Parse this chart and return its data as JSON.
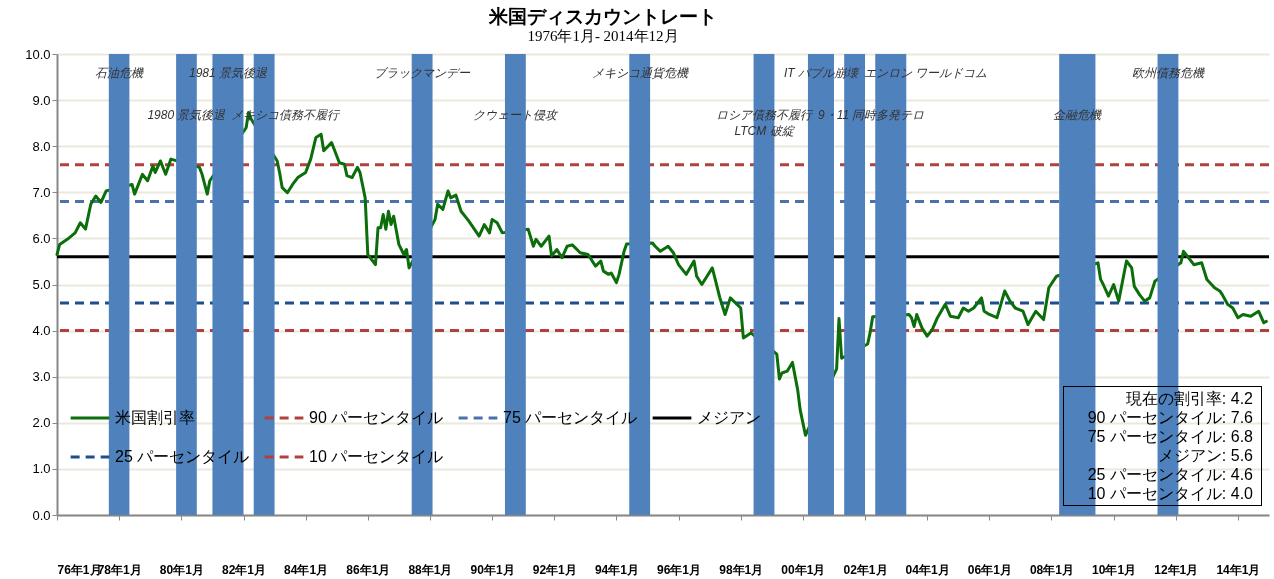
{
  "chart_data": {
    "type": "line",
    "title": "米国ディスカウントレート",
    "subtitle": "1976年1月- 2014年12月",
    "xlim": [
      "1976-01",
      "2015-01"
    ],
    "xticks": [
      {
        "value": "1976-01",
        "label": "76年1月"
      },
      {
        "value": "1978-01",
        "label": "78年1月"
      },
      {
        "value": "1980-01",
        "label": "80年1月"
      },
      {
        "value": "1982-01",
        "label": "82年1月"
      },
      {
        "value": "1984-01",
        "label": "84年1月"
      },
      {
        "value": "1986-01",
        "label": "86年1月"
      },
      {
        "value": "1988-01",
        "label": "88年1月"
      },
      {
        "value": "1990-01",
        "label": "90年1月"
      },
      {
        "value": "1992-01",
        "label": "92年1月"
      },
      {
        "value": "1994-01",
        "label": "94年1月"
      },
      {
        "value": "1996-01",
        "label": "96年1月"
      },
      {
        "value": "1998-01",
        "label": "98年1月"
      },
      {
        "value": "2000-01",
        "label": "00年1月"
      },
      {
        "value": "2002-01",
        "label": "02年1月"
      },
      {
        "value": "2004-01",
        "label": "04年1月"
      },
      {
        "value": "2006-01",
        "label": "06年1月"
      },
      {
        "value": "2008-01",
        "label": "08年1月"
      },
      {
        "value": "2010-01",
        "label": "10年1月"
      },
      {
        "value": "2012-01",
        "label": "12年1月"
      },
      {
        "value": "2014-01",
        "label": "14年1月"
      }
    ],
    "ylim": [
      0,
      10
    ],
    "yticks": [
      {
        "value": 0,
        "label": "0.0"
      },
      {
        "value": 1,
        "label": "1.0"
      },
      {
        "value": 2,
        "label": "2.0"
      },
      {
        "value": 3,
        "label": "3.0"
      },
      {
        "value": 4,
        "label": "4.0"
      },
      {
        "value": 5,
        "label": "5.0"
      },
      {
        "value": 6,
        "label": "6.0"
      },
      {
        "value": 7,
        "label": "7.0"
      },
      {
        "value": 8,
        "label": "8.0"
      },
      {
        "value": 9,
        "label": "9.0"
      },
      {
        "value": 10,
        "label": "10.0"
      }
    ],
    "grid": "y",
    "legend": "bottom left",
    "line_style": "solid",
    "marker": "none",
    "series": [
      {
        "name": "米国割引率",
        "color": "#0b6e0b",
        "x": [
          "1976-01",
          "1976-02",
          "1976-05",
          "1976-08",
          "1976-10",
          "1976-12",
          "1977-02",
          "1977-04",
          "1977-06",
          "1977-08",
          "1978-06",
          "1978-07",
          "1978-10",
          "1978-12",
          "1979-02",
          "1979-03",
          "1979-05",
          "1979-07",
          "1979-09",
          "1980-08",
          "1980-09",
          "1980-11",
          "1980-12",
          "1982-02",
          "1982-03",
          "1982-04",
          "1983-02",
          "1983-03",
          "1983-04",
          "1983-06",
          "1983-08",
          "1983-10",
          "1984-01",
          "1984-03",
          "1984-05",
          "1984-07",
          "1984-08",
          "1984-11",
          "1985-02",
          "1985-04",
          "1985-05",
          "1985-07",
          "1985-09",
          "1985-10",
          "1985-12",
          "1986-01",
          "1986-04",
          "1986-05",
          "1986-06",
          "1986-07",
          "1986-08",
          "1986-09",
          "1986-10",
          "1986-11",
          "1987-01",
          "1987-03",
          "1987-04",
          "1987-05",
          "1988-03",
          "1988-04",
          "1988-06",
          "1988-08",
          "1988-09",
          "1988-11",
          "1989-01",
          "1989-04",
          "1989-08",
          "1989-10",
          "1989-12",
          "1990-01",
          "1990-03",
          "1990-05",
          "1991-03",
          "1991-05",
          "1991-06",
          "1991-08",
          "1991-11",
          "1991-12",
          "1992-02",
          "1992-04",
          "1992-06",
          "1992-08",
          "1992-11",
          "1993-02",
          "1993-05",
          "1993-07",
          "1993-08",
          "1993-10",
          "1993-11",
          "1994-01",
          "1994-02",
          "1994-04",
          "1994-05",
          "1995-03",
          "1995-04",
          "1995-06",
          "1995-09",
          "1995-11",
          "1996-01",
          "1996-04",
          "1996-07",
          "1996-08",
          "1996-10",
          "1996-12",
          "1997-02",
          "1997-05",
          "1997-07",
          "1997-09",
          "1998-01",
          "1998-02",
          "1998-05",
          "1999-03",
          "1999-04",
          "1999-05",
          "1999-07",
          "1999-09",
          "1999-11",
          "1999-12",
          "2000-02",
          "2001-02",
          "2001-03",
          "2001-04",
          "2002-02",
          "2002-03",
          "2002-04",
          "2003-06",
          "2003-07",
          "2003-08",
          "2003-09",
          "2003-11",
          "2004-01",
          "2004-03",
          "2004-05",
          "2004-08",
          "2004-10",
          "2005-01",
          "2005-03",
          "2005-05",
          "2005-07",
          "2005-10",
          "2005-11",
          "2006-01",
          "2006-04",
          "2006-07",
          "2006-09",
          "2006-11",
          "2007-02",
          "2007-04",
          "2007-07",
          "2007-10",
          "2007-12",
          "2008-03",
          "2009-07",
          "2009-08",
          "2009-09",
          "2009-11",
          "2010-01",
          "2010-03",
          "2010-06",
          "2010-08",
          "2010-09",
          "2010-11",
          "2011-01",
          "2011-03",
          "2011-05",
          "2012-03",
          "2012-04",
          "2012-08",
          "2012-11",
          "2013-01",
          "2013-04",
          "2013-06",
          "2013-07",
          "2013-09",
          "2013-11",
          "2014-01",
          "2014-03",
          "2014-06",
          "2014-09",
          "2014-11",
          "2014-12"
        ],
        "values": [
          5.65,
          5.87,
          5.98,
          6.12,
          6.34,
          6.2,
          6.74,
          6.92,
          6.78,
          7.03,
          7.17,
          6.96,
          7.39,
          7.25,
          7.57,
          7.43,
          7.68,
          7.39,
          7.72,
          7.54,
          7.39,
          6.96,
          7.25,
          8.4,
          8.73,
          8.59,
          7.68,
          7.43,
          7.1,
          6.99,
          7.17,
          7.32,
          7.43,
          7.72,
          8.19,
          8.26,
          7.9,
          8.08,
          7.64,
          7.61,
          7.36,
          7.32,
          7.54,
          7.43,
          6.88,
          5.65,
          5.43,
          6.23,
          6.23,
          6.52,
          6.2,
          6.59,
          6.3,
          6.48,
          5.87,
          5.65,
          5.76,
          5.36,
          6.41,
          6.74,
          6.63,
          7.03,
          6.88,
          6.94,
          6.59,
          6.38,
          6.05,
          6.3,
          6.12,
          6.41,
          6.34,
          6.12,
          6.2,
          5.83,
          5.98,
          5.83,
          6.05,
          5.62,
          5.76,
          5.58,
          5.83,
          5.86,
          5.69,
          5.65,
          5.4,
          5.51,
          5.29,
          5.22,
          5.25,
          5.04,
          5.22,
          5.72,
          5.88,
          5.9,
          5.83,
          5.72,
          5.83,
          5.69,
          5.43,
          5.22,
          5.51,
          5.18,
          5.0,
          5.18,
          5.36,
          4.71,
          4.35,
          4.71,
          4.49,
          3.84,
          3.95,
          3.49,
          2.95,
          3.08,
          3.12,
          3.31,
          2.72,
          2.28,
          1.73,
          3.17,
          4.26,
          3.4,
          3.71,
          3.95,
          4.3,
          4.35,
          4.28,
          4.09,
          4.35,
          4.06,
          3.88,
          4.02,
          4.28,
          4.57,
          4.31,
          4.28,
          4.49,
          4.42,
          4.49,
          4.71,
          4.42,
          4.35,
          4.28,
          4.86,
          4.64,
          4.49,
          4.42,
          4.13,
          4.42,
          4.24,
          4.93,
          5.18,
          5.47,
          5.11,
          5.0,
          4.75,
          5.0,
          4.64,
          5.51,
          5.36,
          4.96,
          4.78,
          4.64,
          4.71,
          5.07,
          5.47,
          5.72,
          5.43,
          5.47,
          5.11,
          4.93,
          4.86,
          4.78,
          4.57,
          4.49,
          4.28,
          4.35,
          4.31,
          4.42,
          4.17,
          4.2
        ]
      }
    ],
    "ref_lines": [
      {
        "axis": "y",
        "value": 7.6,
        "label": "90 パーセンタイル",
        "color": "#b0413e",
        "line_style": "dashed"
      },
      {
        "axis": "y",
        "value": 6.8,
        "label": "75 パーセンタイル",
        "color": "#4a72aa",
        "line_style": "dashed"
      },
      {
        "axis": "y",
        "value": 5.6,
        "label": "メジアン",
        "color": "#000000",
        "line_style": "solid"
      },
      {
        "axis": "y",
        "value": 4.6,
        "label": "25 パーセンタイル",
        "color": "#1f4e8c",
        "line_style": "dashed"
      },
      {
        "axis": "y",
        "value": 4.0,
        "label": "10 パーセンタイル",
        "color": "#b0413e",
        "line_style": "dashed"
      }
    ],
    "bands": [
      {
        "axis": "x",
        "from": "1977-09",
        "to": "1978-05",
        "color": "#4f81bd",
        "label": "石油危機"
      },
      {
        "axis": "x",
        "from": "1979-11",
        "to": "1980-07",
        "color": "#4f81bd",
        "label": "1980 景気後退"
      },
      {
        "axis": "x",
        "from": "1981-01",
        "to": "1982-01",
        "color": "#4f81bd",
        "label": "1981 景気後退"
      },
      {
        "axis": "x",
        "from": "1982-05",
        "to": "1983-01",
        "color": "#4f81bd",
        "label": "メキシコ債務不履行"
      },
      {
        "axis": "x",
        "from": "1987-06",
        "to": "1988-02",
        "color": "#4f81bd",
        "label": "ブラックマンデー"
      },
      {
        "axis": "x",
        "from": "1990-06",
        "to": "1991-02",
        "color": "#4f81bd",
        "label": "クウェート侵攻"
      },
      {
        "axis": "x",
        "from": "1994-06",
        "to": "1995-02",
        "color": "#4f81bd",
        "label": "メキシコ通貨危機"
      },
      {
        "axis": "x",
        "from": "1998-06",
        "to": "1999-02",
        "color": "#4f81bd",
        "label": "ロシア債務不履行\nLTCM 破綻"
      },
      {
        "axis": "x",
        "from": "2000-03",
        "to": "2001-01",
        "color": "#4f81bd",
        "label": "IT バブル崩壊"
      },
      {
        "axis": "x",
        "from": "2001-05",
        "to": "2002-01",
        "color": "#4f81bd",
        "label": "9・11 同時多発テロ"
      },
      {
        "axis": "x",
        "from": "2002-05",
        "to": "2003-05",
        "color": "#4f81bd",
        "label": "エンロン ワールドコム"
      },
      {
        "axis": "x",
        "from": "2008-04",
        "to": "2009-06",
        "color": "#4f81bd",
        "label": "金融危機"
      },
      {
        "axis": "x",
        "from": "2011-06",
        "to": "2012-02",
        "color": "#4f81bd",
        "label": "欧州債務危機"
      }
    ],
    "annotations": [
      "現在の割引率: 4.2",
      "90 パーセンタイル: 7.6",
      "75 パーセンタイル: 6.8",
      "メジアン: 5.6",
      "25 パーセンタイル: 4.6",
      "10 パーセンタイル: 4.0"
    ]
  }
}
